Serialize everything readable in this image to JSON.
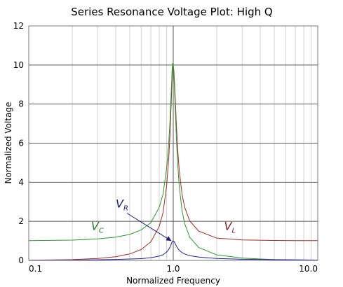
{
  "chart_data": {
    "type": "line",
    "title": "Series Resonance Voltage Plot: High Q",
    "xlabel": "Normalized Frequency",
    "ylabel": "Normalized Voltage",
    "x_scale": "log",
    "xlim": [
      0.1,
      10.0
    ],
    "ylim": [
      0,
      12
    ],
    "x_ticks": [
      "0.1",
      "1.0",
      "10.0"
    ],
    "y_ticks": [
      "0",
      "2",
      "4",
      "6",
      "8",
      "10",
      "12"
    ],
    "grid": true,
    "colors": {
      "VL": "#aa2a2a",
      "VC": "#2a9a2a",
      "VR": "#22229a",
      "VL_label": "#8b1a1a",
      "VC_label": "#1f7f1f",
      "VR_label": "#1a1a80",
      "grid": "#5a5a5a",
      "minor_grid": "#d2d2d2"
    },
    "series": [
      {
        "key": "VL",
        "x": [
          0.1,
          0.2,
          0.3,
          0.4,
          0.5,
          0.6,
          0.7,
          0.8,
          0.85,
          0.9,
          0.93,
          0.95,
          0.97,
          0.98,
          0.99,
          1.0,
          1.01,
          1.02,
          1.03,
          1.05,
          1.07,
          1.1,
          1.15,
          1.2,
          1.3,
          1.5,
          2.0,
          3.0,
          5.0,
          7.0,
          10.0
        ],
        "values": [
          0.01,
          0.04,
          0.1,
          0.19,
          0.33,
          0.56,
          0.95,
          1.74,
          2.45,
          3.83,
          5.19,
          6.46,
          8.23,
          9.23,
          9.88,
          10.0,
          9.7,
          9.13,
          8.44,
          7.02,
          5.84,
          4.6,
          3.39,
          2.71,
          2.02,
          1.5,
          1.14,
          1.05,
          1.02,
          1.01,
          1.01
        ]
      },
      {
        "key": "VC",
        "x": [
          0.1,
          0.2,
          0.3,
          0.4,
          0.5,
          0.6,
          0.7,
          0.8,
          0.85,
          0.9,
          0.93,
          0.95,
          0.97,
          0.98,
          0.99,
          1.0,
          1.01,
          1.02,
          1.03,
          1.05,
          1.07,
          1.1,
          1.15,
          1.2,
          1.3,
          1.5,
          2.0,
          3.0,
          5.0,
          7.0,
          10.0
        ],
        "values": [
          1.01,
          1.04,
          1.1,
          1.19,
          1.33,
          1.56,
          1.93,
          2.72,
          3.39,
          4.73,
          6.0,
          7.16,
          8.75,
          9.61,
          10.08,
          10.0,
          9.51,
          8.78,
          7.96,
          6.37,
          5.1,
          3.8,
          2.56,
          1.88,
          1.19,
          0.66,
          0.28,
          0.12,
          0.04,
          0.02,
          0.01
        ]
      },
      {
        "key": "VR",
        "x": [
          0.1,
          0.2,
          0.3,
          0.4,
          0.5,
          0.6,
          0.7,
          0.8,
          0.85,
          0.9,
          0.93,
          0.95,
          0.97,
          0.98,
          0.99,
          1.0,
          1.01,
          1.02,
          1.03,
          1.05,
          1.07,
          1.1,
          1.15,
          1.2,
          1.3,
          1.5,
          2.0,
          3.0,
          5.0,
          7.0,
          10.0
        ],
        "values": [
          0.01,
          0.02,
          0.03,
          0.05,
          0.07,
          0.09,
          0.14,
          0.22,
          0.29,
          0.43,
          0.56,
          0.68,
          0.85,
          0.94,
          0.99,
          1.0,
          0.98,
          0.93,
          0.87,
          0.75,
          0.63,
          0.52,
          0.4,
          0.33,
          0.24,
          0.17,
          0.1,
          0.06,
          0.04,
          0.03,
          0.02
        ]
      }
    ],
    "annotations": [
      {
        "key": "VL",
        "main": "V",
        "sub": "L",
        "x": 2.25,
        "y": 1.55
      },
      {
        "key": "VC",
        "main": "V",
        "sub": "C",
        "x": 0.27,
        "y": 1.55
      },
      {
        "key": "VR",
        "main": "V",
        "sub": "R",
        "x": 0.4,
        "y": 2.7,
        "arrow_to": [
          0.97,
          1.0
        ]
      }
    ]
  }
}
